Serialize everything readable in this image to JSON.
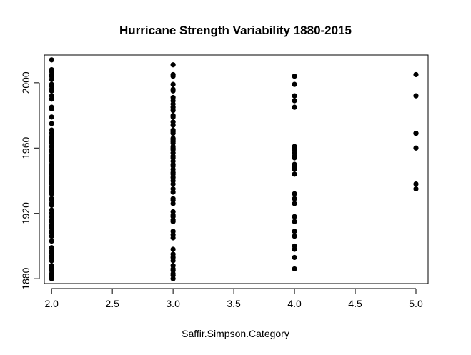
{
  "chart_data": {
    "type": "scatter",
    "title": "Hurricane Strength Variability 1880-2015",
    "xlabel": "Saffir.Simpson.Category",
    "ylabel": "",
    "xlim": [
      1.94,
      5.1
    ],
    "ylim": [
      1877,
      2017
    ],
    "xticks": [
      2.0,
      2.5,
      3.0,
      3.5,
      4.0,
      4.5,
      5.0
    ],
    "xtick_labels": [
      "2.0",
      "2.5",
      "3.0",
      "3.5",
      "4.0",
      "4.5",
      "5.0"
    ],
    "yticks": [
      1880,
      1920,
      1960,
      2000
    ],
    "ytick_labels": [
      "1880",
      "1920",
      "1960",
      "2000"
    ],
    "grid": false,
    "marker_color": "#000000",
    "series": [
      {
        "x": 2,
        "y": [
          1880,
          1881,
          1882,
          1883,
          1885,
          1886,
          1887,
          1888,
          1891,
          1893,
          1894,
          1896,
          1897,
          1899,
          1903,
          1906,
          1908,
          1909,
          1911,
          1912,
          1913,
          1915,
          1916,
          1918,
          1920,
          1922,
          1925,
          1926,
          1928,
          1929,
          1932,
          1933,
          1934,
          1935,
          1936,
          1938,
          1939,
          1940,
          1941,
          1942,
          1944,
          1945,
          1946,
          1947,
          1948,
          1949,
          1950,
          1952,
          1953,
          1954,
          1955,
          1956,
          1958,
          1959,
          1961,
          1963,
          1964,
          1965,
          1966,
          1967,
          1969,
          1971,
          1975,
          1979,
          1984,
          1985,
          1990,
          1992,
          1995,
          1996,
          1998,
          1999,
          2002,
          2004,
          2005,
          2007,
          2008,
          2014
        ]
      },
      {
        "x": 3,
        "y": [
          1880,
          1882,
          1883,
          1885,
          1886,
          1888,
          1891,
          1893,
          1895,
          1898,
          1905,
          1907,
          1909,
          1915,
          1916,
          1918,
          1919,
          1921,
          1926,
          1928,
          1929,
          1933,
          1935,
          1938,
          1940,
          1942,
          1944,
          1945,
          1947,
          1949,
          1950,
          1952,
          1954,
          1955,
          1957,
          1959,
          1960,
          1961,
          1963,
          1964,
          1965,
          1966,
          1969,
          1970,
          1971,
          1974,
          1976,
          1979,
          1980,
          1983,
          1985,
          1987,
          1989,
          1991,
          1995,
          1996,
          1999,
          2004,
          2005,
          2011
        ]
      },
      {
        "x": 4,
        "y": [
          1886,
          1893,
          1898,
          1900,
          1906,
          1909,
          1915,
          1918,
          1926,
          1929,
          1932,
          1944,
          1947,
          1948,
          1949,
          1950,
          1954,
          1955,
          1957,
          1959,
          1960,
          1961,
          1985,
          1989,
          1992,
          1999,
          2004
        ]
      },
      {
        "x": 5,
        "y": [
          1935,
          1938,
          1960,
          1969,
          1969,
          1992,
          2005
        ]
      }
    ]
  }
}
